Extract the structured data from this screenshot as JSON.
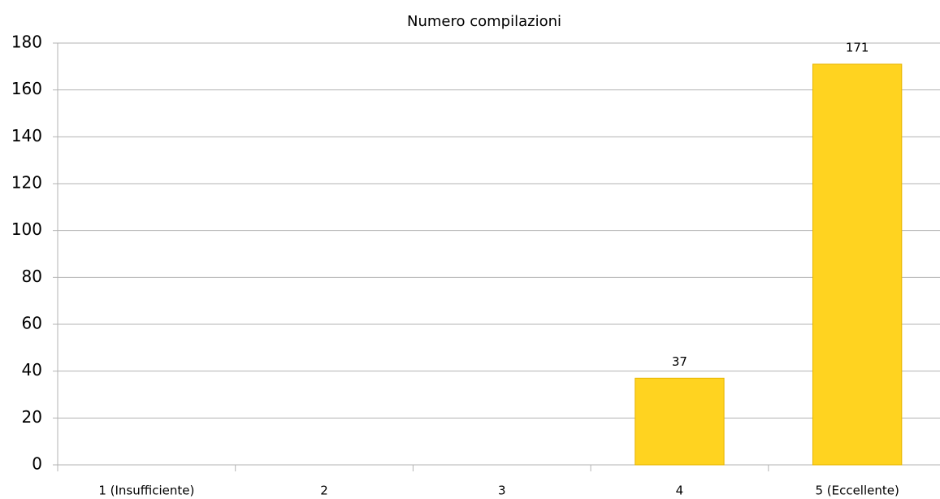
{
  "chart_data": {
    "type": "bar",
    "title": "Numero compilazioni",
    "categories": [
      "1 (Insufficiente)",
      "2",
      "3",
      "4",
      "5 (Eccellente)"
    ],
    "values": [
      null,
      null,
      null,
      37,
      171
    ],
    "color": "#ffd320",
    "ylim": [
      0,
      180
    ],
    "yticks": [
      0,
      20,
      40,
      60,
      80,
      100,
      120,
      140,
      160,
      180
    ],
    "grid": true
  }
}
